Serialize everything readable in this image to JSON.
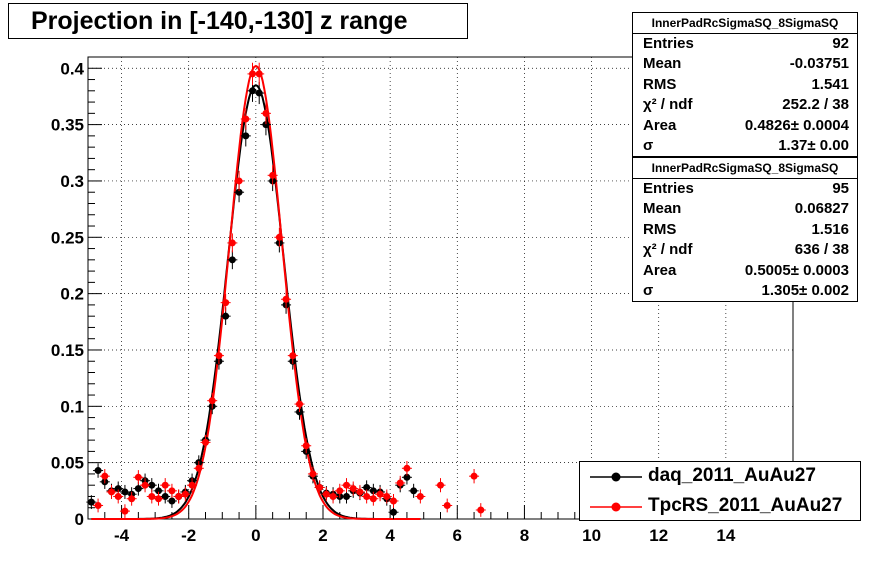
{
  "title": "Projection in [-140,-130] z range",
  "stats_boxes": [
    {
      "name": "InnerPadRcSigmaSQ_8SigmaSQ",
      "rows": [
        {
          "key": "Entries",
          "value": "92"
        },
        {
          "key": "Mean",
          "value": "-0.03751"
        },
        {
          "key": "RMS",
          "value": "1.541"
        },
        {
          "key": "χ² / ndf",
          "value": "252.2 / 38"
        },
        {
          "key": "Area",
          "value": "0.4826± 0.0004"
        },
        {
          "key": "σ",
          "value": "1.37± 0.00"
        }
      ]
    },
    {
      "name": "InnerPadRcSigmaSQ_8SigmaSQ",
      "rows": [
        {
          "key": "Entries",
          "value": "95"
        },
        {
          "key": "Mean",
          "value": "0.06827"
        },
        {
          "key": "RMS",
          "value": "1.516"
        },
        {
          "key": "χ² / ndf",
          "value": "636 / 38"
        },
        {
          "key": "Area",
          "value": "0.5005± 0.0003"
        },
        {
          "key": "σ",
          "value": "1.305± 0.002"
        }
      ]
    }
  ],
  "legend": [
    {
      "label": "daq_2011_AuAu27",
      "color": "#000000"
    },
    {
      "label": "TpcRS_2011_AuAu27",
      "color": "#ff0000"
    }
  ],
  "chart_data": {
    "type": "scatter",
    "title": "Projection in [-140,-130] z range",
    "xlabel": "",
    "ylabel": "",
    "xlim": [
      -5,
      16
    ],
    "ylim": [
      0,
      0.41
    ],
    "x_ticks": [
      -4,
      -2,
      0,
      2,
      4,
      6,
      8,
      10,
      12,
      14
    ],
    "y_ticks": [
      0,
      0.05,
      0.1,
      0.15,
      0.2,
      0.25,
      0.3,
      0.35,
      0.4
    ],
    "grid": true,
    "legend_position": "bottom-right",
    "series": [
      {
        "name": "daq_2011_AuAu27",
        "color": "#000000",
        "points": [
          [
            -4.9,
            0.015
          ],
          [
            -4.7,
            0.043
          ],
          [
            -4.5,
            0.033
          ],
          [
            -4.3,
            0.025
          ],
          [
            -4.1,
            0.027
          ],
          [
            -3.9,
            0.024
          ],
          [
            -3.7,
            0.022
          ],
          [
            -3.5,
            0.027
          ],
          [
            -3.3,
            0.034
          ],
          [
            -3.1,
            0.03
          ],
          [
            -2.9,
            0.025
          ],
          [
            -2.7,
            0.02
          ],
          [
            -2.5,
            0.016
          ],
          [
            -2.3,
            0.02
          ],
          [
            -2.1,
            0.024
          ],
          [
            -1.9,
            0.034
          ],
          [
            -1.7,
            0.05
          ],
          [
            -1.5,
            0.07
          ],
          [
            -1.3,
            0.1
          ],
          [
            -1.1,
            0.14
          ],
          [
            -0.9,
            0.18
          ],
          [
            -0.7,
            0.23
          ],
          [
            -0.5,
            0.29
          ],
          [
            -0.3,
            0.34
          ],
          [
            -0.1,
            0.38
          ],
          [
            0.1,
            0.378
          ],
          [
            0.3,
            0.35
          ],
          [
            0.5,
            0.3
          ],
          [
            0.7,
            0.245
          ],
          [
            0.9,
            0.19
          ],
          [
            1.1,
            0.14
          ],
          [
            1.3,
            0.095
          ],
          [
            1.5,
            0.06
          ],
          [
            1.7,
            0.038
          ],
          [
            1.9,
            0.028
          ],
          [
            2.1,
            0.023
          ],
          [
            2.3,
            0.022
          ],
          [
            2.5,
            0.02
          ],
          [
            2.7,
            0.02
          ],
          [
            2.9,
            0.025
          ],
          [
            3.1,
            0.023
          ],
          [
            3.3,
            0.028
          ],
          [
            3.5,
            0.025
          ],
          [
            3.7,
            0.024
          ],
          [
            3.9,
            0.018
          ],
          [
            4.1,
            0.006
          ],
          [
            4.3,
            0.03
          ],
          [
            4.5,
            0.037
          ],
          [
            4.7,
            0.025
          ]
        ]
      },
      {
        "name": "TpcRS_2011_AuAu27",
        "color": "#ff0000",
        "points": [
          [
            -4.7,
            0.012
          ],
          [
            -4.5,
            0.038
          ],
          [
            -4.3,
            0.024
          ],
          [
            -4.1,
            0.02
          ],
          [
            -3.9,
            0.007
          ],
          [
            -3.7,
            0.018
          ],
          [
            -3.5,
            0.037
          ],
          [
            -3.3,
            0.03
          ],
          [
            -3.1,
            0.02
          ],
          [
            -2.9,
            0.018
          ],
          [
            -2.7,
            0.03
          ],
          [
            -2.5,
            0.025
          ],
          [
            -2.3,
            0.02
          ],
          [
            -2.1,
            0.022
          ],
          [
            -1.9,
            0.03
          ],
          [
            -1.7,
            0.045
          ],
          [
            -1.5,
            0.068
          ],
          [
            -1.3,
            0.105
          ],
          [
            -1.1,
            0.145
          ],
          [
            -0.9,
            0.192
          ],
          [
            -0.7,
            0.245
          ],
          [
            -0.5,
            0.3
          ],
          [
            -0.3,
            0.355
          ],
          [
            -0.1,
            0.395
          ],
          [
            0.1,
            0.395
          ],
          [
            0.3,
            0.36
          ],
          [
            0.5,
            0.305
          ],
          [
            0.7,
            0.25
          ],
          [
            0.9,
            0.195
          ],
          [
            1.1,
            0.145
          ],
          [
            1.3,
            0.102
          ],
          [
            1.5,
            0.065
          ],
          [
            1.7,
            0.04
          ],
          [
            1.9,
            0.028
          ],
          [
            2.1,
            0.022
          ],
          [
            2.3,
            0.02
          ],
          [
            2.5,
            0.025
          ],
          [
            2.7,
            0.03
          ],
          [
            2.9,
            0.027
          ],
          [
            3.1,
            0.024
          ],
          [
            3.3,
            0.02
          ],
          [
            3.5,
            0.018
          ],
          [
            3.7,
            0.022
          ],
          [
            3.9,
            0.02
          ],
          [
            4.1,
            0.016
          ],
          [
            4.3,
            0.032
          ],
          [
            4.5,
            0.045
          ],
          [
            4.9,
            0.02
          ],
          [
            5.5,
            0.03
          ],
          [
            5.7,
            0.012
          ],
          [
            6.5,
            0.038
          ],
          [
            6.7,
            0.008
          ]
        ]
      }
    ],
    "fits": [
      {
        "name": "daq_2011_AuAu27",
        "color": "#000000",
        "sigma": 1.37,
        "amplitude": 0.385
      },
      {
        "name": "TpcRS_2011_AuAu27",
        "color": "#ff0000",
        "sigma": 1.305,
        "amplitude": 0.402
      }
    ]
  }
}
